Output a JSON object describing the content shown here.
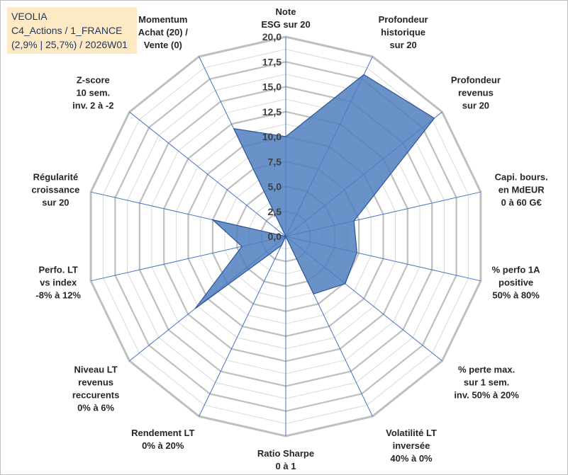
{
  "chart_data": {
    "type": "radar",
    "title_lines": [
      "VEOLIA",
      "C4_Actions / 1_FRANCE",
      "(2,9% | 25,7%) / 2026W01"
    ],
    "axes": [
      {
        "label": [
          "Note",
          "ESG sur 20"
        ],
        "value": 10.0
      },
      {
        "label": [
          "Profondeur",
          "historique",
          "sur 20"
        ],
        "value": 18.0
      },
      {
        "label": [
          "Profondeur",
          "revenus",
          "sur 20"
        ],
        "value": 19.0
      },
      {
        "label": [
          "Capi. bours.",
          "en MdEUR",
          "0 à 60 G€"
        ],
        "value": 7.0
      },
      {
        "label": [
          "% perfo 1A",
          "positive",
          "50% à 80%"
        ],
        "value": 7.3
      },
      {
        "label": [
          "% perte max.",
          "sur 1 sem.",
          "inv. 50% à 20%"
        ],
        "value": 7.6
      },
      {
        "label": [
          "Volatilité LT",
          "inversée",
          "40% à 0%"
        ],
        "value": 6.4
      },
      {
        "label": [
          "Ratio Sharpe",
          "0 à 1"
        ],
        "value": 0.0
      },
      {
        "label": [
          "Rendement LT",
          "0% à 20%"
        ],
        "value": 1.0
      },
      {
        "label": [
          "Niveau LT",
          "revenus",
          "reccurents",
          "0% à 6%"
        ],
        "value": 11.6
      },
      {
        "label": [
          "Perfo. LT",
          "vs index",
          "-8% à 12%"
        ],
        "value": 4.5
      },
      {
        "label": [
          "Régularité",
          "croissance",
          "sur 20"
        ],
        "value": 7.5
      },
      {
        "label": [
          "Z-score",
          "10 sem.",
          "inv. 2 à -2"
        ],
        "value": 0.0
      },
      {
        "label": [
          "Momentum",
          "Achat (20) /",
          "Vente (0)"
        ],
        "value": 12.0
      }
    ],
    "rlim": [
      0,
      20
    ],
    "ticks": [
      0,
      2.5,
      5,
      7.5,
      10,
      12.5,
      15,
      17.5,
      20
    ],
    "tick_labels": [
      "0,0",
      "2,5",
      "5,0",
      "7,5",
      "10,0",
      "12,5",
      "15,0",
      "17,5",
      "20,0"
    ],
    "fill_color": "#4f7fbf",
    "line_color": "#2f5597",
    "grid_color": "#bfbfbf",
    "spoke_color": "#4472c4"
  }
}
